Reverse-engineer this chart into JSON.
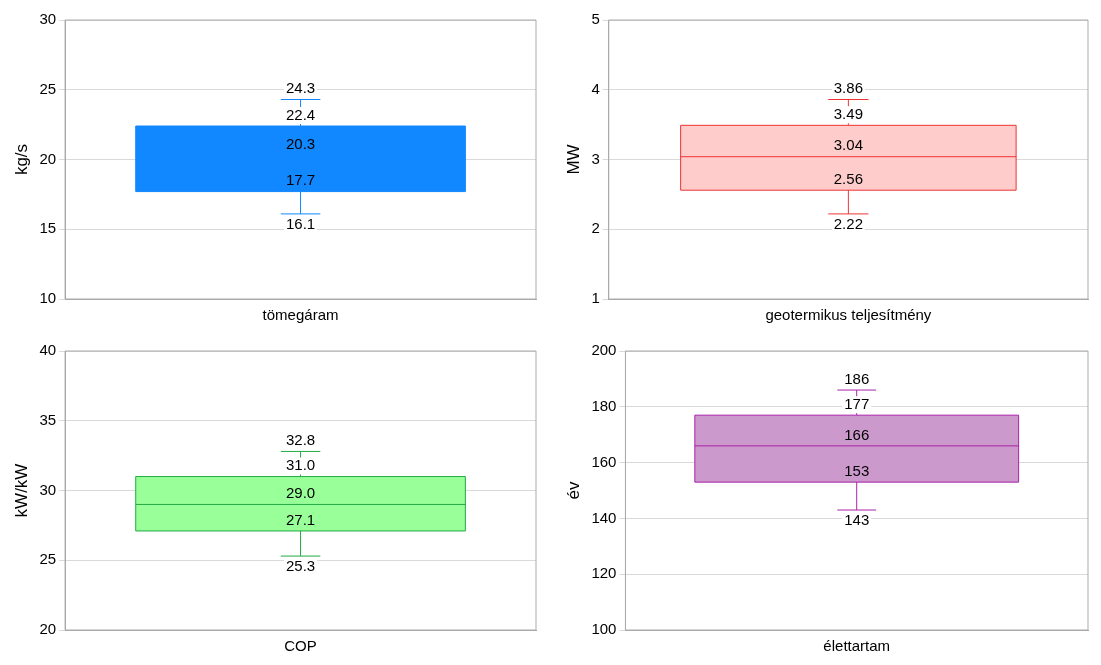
{
  "chart_data": [
    {
      "type": "box",
      "categories": [
        "tömegáram"
      ],
      "ylabel": "kg/s",
      "ylim": [
        10,
        30
      ],
      "yticks": [
        10,
        15,
        20,
        25,
        30
      ],
      "grid": "y",
      "colors": [
        "#1188ff"
      ],
      "color": "#1188ff",
      "boxes": [
        {
          "low": 16.1,
          "q1": 17.7,
          "median": 20.3,
          "q3": 22.4,
          "high": 24.3
        }
      ],
      "annotations": [
        {
          "text": "16.1",
          "x": "tömegáram",
          "y": 16.1
        },
        {
          "text": "17.7",
          "x": "tömegáram",
          "y": 17.7
        },
        {
          "text": "20.3",
          "x": "tömegáram",
          "y": 20.3
        },
        {
          "text": "22.4",
          "x": "tömegáram",
          "y": 22.4
        },
        {
          "text": "24.3",
          "x": "tömegáram",
          "y": 24.3
        }
      ]
    },
    {
      "type": "box",
      "categories": [
        "geotermikus teljesítmény"
      ],
      "ylabel": "MW",
      "ylim": [
        1,
        5
      ],
      "yticks": [
        1,
        2,
        3,
        4,
        5
      ],
      "grid": "y",
      "colors": [
        "#ffcccc"
      ],
      "color": "#ee3333",
      "boxes": [
        {
          "low": 2.22,
          "q1": 2.56,
          "median": 3.04,
          "q3": 3.49,
          "high": 3.86
        }
      ],
      "annotations": [
        {
          "text": "2.22",
          "x": "geotermikus teljesítmény",
          "y": 2.22
        },
        {
          "text": "2.56",
          "x": "geotermikus teljesítmény",
          "y": 2.56
        },
        {
          "text": "3.04",
          "x": "geotermikus teljesítmény",
          "y": 3.04
        },
        {
          "text": "3.49",
          "x": "geotermikus teljesítmény",
          "y": 3.49
        },
        {
          "text": "3.86",
          "x": "geotermikus teljesítmény",
          "y": 3.86
        }
      ]
    },
    {
      "type": "box",
      "categories": [
        "COP"
      ],
      "ylabel": "kW/kW",
      "ylim": [
        20,
        40
      ],
      "yticks": [
        20,
        25,
        30,
        35,
        40
      ],
      "grid": "y",
      "colors": [
        "#99ff99"
      ],
      "color": "#22aa44",
      "boxes": [
        {
          "low": 25.3,
          "q1": 27.1,
          "median": 29.0,
          "q3": 31.0,
          "high": 32.8
        }
      ],
      "annotations": [
        {
          "text": "25.3",
          "x": "COP",
          "y": 25.3
        },
        {
          "text": "27.1",
          "x": "COP",
          "y": 27.1
        },
        {
          "text": "29.0",
          "x": "COP",
          "y": 29.0
        },
        {
          "text": "31.0",
          "x": "COP",
          "y": 31.0
        },
        {
          "text": "32.8",
          "x": "COP",
          "y": 32.8
        }
      ]
    },
    {
      "type": "box",
      "categories": [
        "élettartam"
      ],
      "ylabel": "év",
      "ylim": [
        100,
        200
      ],
      "yticks": [
        100,
        120,
        140,
        160,
        180,
        200
      ],
      "grid": "y",
      "colors": [
        "#cc99cc"
      ],
      "color": "#aa22aa",
      "boxes": [
        {
          "low": 143,
          "q1": 153,
          "median": 166,
          "q3": 177,
          "high": 186
        }
      ],
      "annotations": [
        {
          "text": "143",
          "x": "élettartam",
          "y": 143
        },
        {
          "text": "153",
          "x": "élettartam",
          "y": 153
        },
        {
          "text": "166",
          "x": "élettartam",
          "y": 166
        },
        {
          "text": "177",
          "x": "élettartam",
          "y": 177
        },
        {
          "text": "186",
          "x": "élettartam",
          "y": 186
        }
      ]
    }
  ]
}
